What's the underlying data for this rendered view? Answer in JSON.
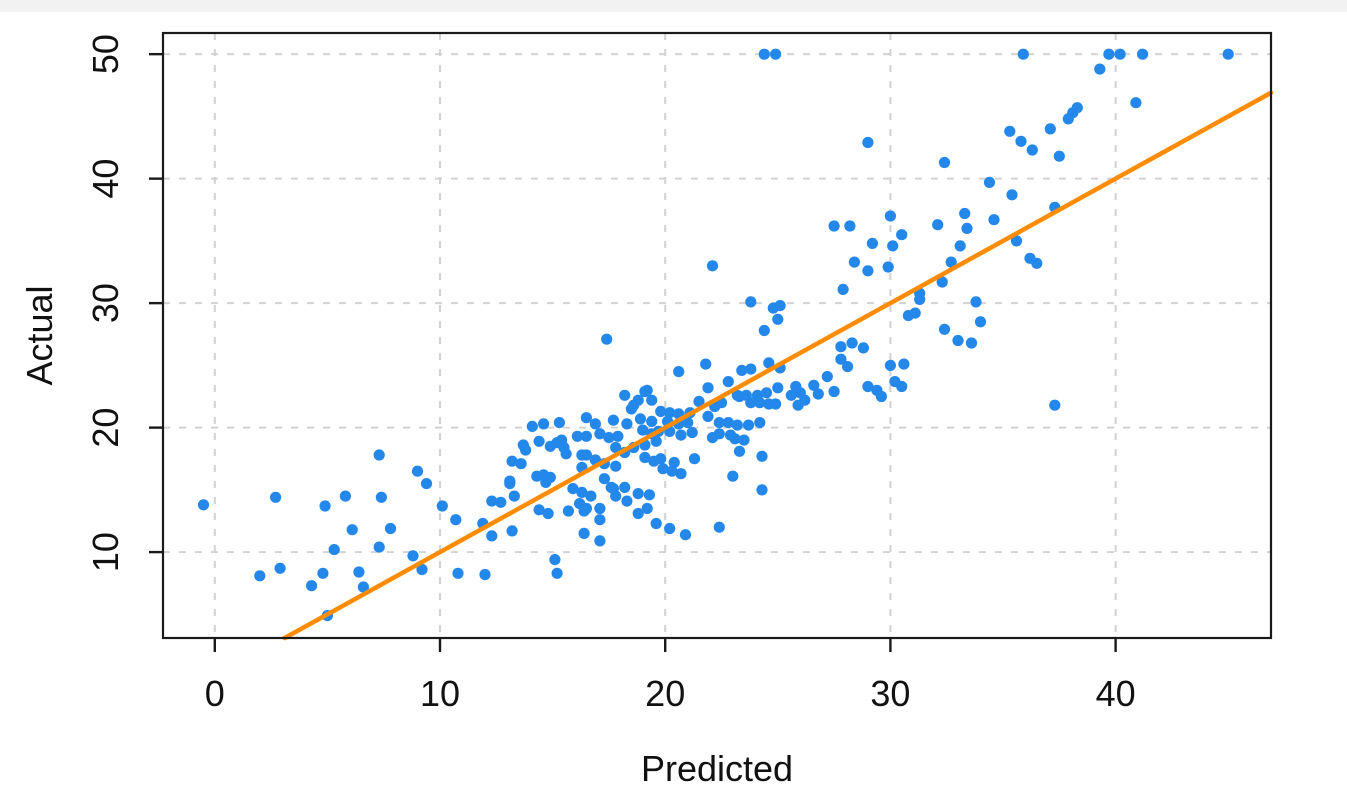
{
  "chart_data": {
    "type": "scatter",
    "title": "",
    "xlabel": "Predicted",
    "ylabel": "Actual",
    "xlim": [
      -2.3,
      46.9
    ],
    "ylim": [
      3.1,
      51.7
    ],
    "x_ticks": [
      0,
      10,
      20,
      30,
      40
    ],
    "y_ticks": [
      10,
      20,
      30,
      40,
      50
    ],
    "grid": true,
    "legend_position": "none",
    "point_color": "#2487EA",
    "grid_color": "#D2D2D2",
    "axis_color": "#1A1A1A",
    "reference_line": {
      "type": "identity",
      "slope": 1,
      "intercept": 0,
      "color": "#FF8C00",
      "width": 4.5
    },
    "points": [
      [
        24.4,
        50
      ],
      [
        24.9,
        50
      ],
      [
        35.9,
        50
      ],
      [
        39.7,
        50
      ],
      [
        40.2,
        50
      ],
      [
        41.2,
        50
      ],
      [
        45,
        50
      ],
      [
        39.3,
        48.8
      ],
      [
        38.1,
        45.3
      ],
      [
        38.3,
        45.7
      ],
      [
        40.9,
        46.1
      ],
      [
        37.9,
        44.8
      ],
      [
        37.1,
        44
      ],
      [
        35.3,
        43.8
      ],
      [
        35.8,
        43
      ],
      [
        36.3,
        42.3
      ],
      [
        37.5,
        41.8
      ],
      [
        32.4,
        41.3
      ],
      [
        29,
        42.9
      ],
      [
        34.4,
        39.7
      ],
      [
        35.4,
        38.7
      ],
      [
        30,
        37
      ],
      [
        33.3,
        37.2
      ],
      [
        37.3,
        37.7
      ],
      [
        33.4,
        36
      ],
      [
        32.1,
        36.3
      ],
      [
        34.6,
        36.7
      ],
      [
        27.5,
        36.2
      ],
      [
        28.2,
        36.2
      ],
      [
        30.5,
        35.5
      ],
      [
        30.1,
        34.6
      ],
      [
        33.1,
        34.6
      ],
      [
        35.6,
        35
      ],
      [
        29.2,
        34.8
      ],
      [
        36.2,
        33.6
      ],
      [
        36.5,
        33.2
      ],
      [
        32.7,
        33.3
      ],
      [
        28.4,
        33.3
      ],
      [
        22.1,
        33
      ],
      [
        29,
        32.6
      ],
      [
        29.9,
        32.9
      ],
      [
        32.3,
        31.7
      ],
      [
        31.3,
        30.8
      ],
      [
        27.9,
        31.1
      ],
      [
        31.3,
        30.3
      ],
      [
        30.8,
        29
      ],
      [
        31.1,
        29.2
      ],
      [
        33.8,
        30.1
      ],
      [
        34,
        28.5
      ],
      [
        32.4,
        27.9
      ],
      [
        33,
        27
      ],
      [
        33.6,
        26.8
      ],
      [
        23.8,
        30.1
      ],
      [
        24.8,
        29.6
      ],
      [
        25.1,
        29.8
      ],
      [
        25,
        28.7
      ],
      [
        24.4,
        27.8
      ],
      [
        17.4,
        27.1
      ],
      [
        30.6,
        25.1
      ],
      [
        27.8,
        26.5
      ],
      [
        28.3,
        26.8
      ],
      [
        28.8,
        26.4
      ],
      [
        30,
        25
      ],
      [
        21.8,
        25.1
      ],
      [
        24.6,
        25.2
      ],
      [
        20.6,
        24.5
      ],
      [
        23.4,
        24.6
      ],
      [
        23.8,
        24.7
      ],
      [
        25.1,
        24.8
      ],
      [
        27.8,
        25.5
      ],
      [
        28.1,
        24.9
      ],
      [
        22.8,
        23.7
      ],
      [
        27.2,
        24.1
      ],
      [
        26.6,
        23.4
      ],
      [
        25.8,
        23.3
      ],
      [
        29,
        23.3
      ],
      [
        29.4,
        23
      ],
      [
        30.2,
        23.7
      ],
      [
        30.5,
        23.3
      ],
      [
        25,
        23.2
      ],
      [
        23.2,
        22.6
      ],
      [
        23.6,
        22.6
      ],
      [
        24.1,
        22.6
      ],
      [
        24.5,
        22.8
      ],
      [
        25.6,
        22.6
      ],
      [
        23.3,
        22.5
      ],
      [
        19.1,
        22.9
      ],
      [
        19.4,
        22.2
      ],
      [
        18.2,
        22.6
      ],
      [
        18.8,
        22.2
      ],
      [
        19.2,
        23
      ],
      [
        21.9,
        23.2
      ],
      [
        26,
        22.8
      ],
      [
        26.8,
        22.7
      ],
      [
        27.5,
        22.9
      ],
      [
        26.2,
        22.2
      ],
      [
        29.6,
        22.5
      ],
      [
        23.8,
        22
      ],
      [
        24.2,
        22
      ],
      [
        24.6,
        21.9
      ],
      [
        24.9,
        21.9
      ],
      [
        21.5,
        22.1
      ],
      [
        22.5,
        22
      ],
      [
        22.2,
        21.7
      ],
      [
        25.9,
        21.8
      ],
      [
        18.5,
        21.5
      ],
      [
        18.6,
        21.8
      ],
      [
        37.3,
        21.8
      ],
      [
        20.2,
        21.2
      ],
      [
        20.6,
        21.1
      ],
      [
        21.1,
        21.2
      ],
      [
        19.8,
        21.3
      ],
      [
        21.9,
        20.9
      ],
      [
        18.9,
        20.7
      ],
      [
        17.7,
        20.6
      ],
      [
        16.5,
        20.8
      ],
      [
        19.4,
        20.5
      ],
      [
        20.1,
        20.5
      ],
      [
        21,
        20.4
      ],
      [
        22.4,
        20.4
      ],
      [
        24.2,
        20.4
      ],
      [
        16.9,
        20.3
      ],
      [
        18.3,
        20.3
      ],
      [
        20.6,
        20.3
      ],
      [
        22.8,
        20.4
      ],
      [
        23.2,
        20.2
      ],
      [
        23.7,
        20.2
      ],
      [
        14.1,
        20.1
      ],
      [
        14.6,
        20.3
      ],
      [
        15.3,
        20.4
      ],
      [
        22.4,
        19.5
      ],
      [
        22.9,
        19.4
      ],
      [
        22.1,
        19.2
      ],
      [
        23.1,
        19.1
      ],
      [
        23.5,
        19
      ],
      [
        16.1,
        19.3
      ],
      [
        16.5,
        19.3
      ],
      [
        17.1,
        19.5
      ],
      [
        17.5,
        19.2
      ],
      [
        17.9,
        19.3
      ],
      [
        15.4,
        19
      ],
      [
        14.4,
        18.9
      ],
      [
        19,
        19.8
      ],
      [
        19.4,
        19.5
      ],
      [
        19.7,
        19.7
      ],
      [
        20.2,
        19.7
      ],
      [
        20.7,
        19.4
      ],
      [
        21.2,
        19.6
      ],
      [
        19.6,
        18.9
      ],
      [
        15.2,
        18.8
      ],
      [
        13.7,
        18.6
      ],
      [
        14.9,
        18.5
      ],
      [
        15.5,
        18.4
      ],
      [
        17.8,
        18.4
      ],
      [
        18.2,
        18
      ],
      [
        18.6,
        18.4
      ],
      [
        19.1,
        18.6
      ],
      [
        13.8,
        18.2
      ],
      [
        16.5,
        17.8
      ],
      [
        16.9,
        17.4
      ],
      [
        17.3,
        17.1
      ],
      [
        19.1,
        17.6
      ],
      [
        19.5,
        17.3
      ],
      [
        13.2,
        17.3
      ],
      [
        13.6,
        17.1
      ],
      [
        15.6,
        17.9
      ],
      [
        16.3,
        17.8
      ],
      [
        19.8,
        17.5
      ],
      [
        20.4,
        17.2
      ],
      [
        21.3,
        17.5
      ],
      [
        23.3,
        18.1
      ],
      [
        24.3,
        17.7
      ],
      [
        7.3,
        17.8
      ],
      [
        17.8,
        16.9
      ],
      [
        19.9,
        16.7
      ],
      [
        20.3,
        16.5
      ],
      [
        16.3,
        16.8
      ],
      [
        20.7,
        16.3
      ],
      [
        14.6,
        16.2
      ],
      [
        9,
        16.5
      ],
      [
        23,
        16.1
      ],
      [
        14.3,
        16.1
      ],
      [
        17.3,
        15.9
      ],
      [
        14.9,
        16
      ],
      [
        15.9,
        15.1
      ],
      [
        17.6,
        15.2
      ],
      [
        18.2,
        15.2
      ],
      [
        13.1,
        15.5
      ],
      [
        9.4,
        15.5
      ],
      [
        14.7,
        15.6
      ],
      [
        13.1,
        15.7
      ],
      [
        17.7,
        15.1
      ],
      [
        24.3,
        15
      ],
      [
        16.3,
        14.8
      ],
      [
        16.7,
        14.5
      ],
      [
        17.8,
        14.5
      ],
      [
        18.8,
        14.7
      ],
      [
        19.3,
        14.6
      ],
      [
        13.3,
        14.5
      ],
      [
        18.3,
        14.1
      ],
      [
        12.3,
        14.1
      ],
      [
        2.7,
        14.4
      ],
      [
        5.8,
        14.5
      ],
      [
        7.4,
        14.4
      ],
      [
        12.7,
        14
      ],
      [
        16.2,
        13.9
      ],
      [
        16.5,
        13.5
      ],
      [
        15.7,
        13.3
      ],
      [
        17.1,
        13.5
      ],
      [
        19.2,
        13.5
      ],
      [
        18.8,
        13.1
      ],
      [
        16.4,
        13.3
      ],
      [
        14.4,
        13.4
      ],
      [
        14.8,
        13.1
      ],
      [
        4.9,
        13.7
      ],
      [
        10.1,
        13.7
      ],
      [
        -0.5,
        13.8
      ],
      [
        17.1,
        12.6
      ],
      [
        10.7,
        12.6
      ],
      [
        11.9,
        12.3
      ],
      [
        22.4,
        12
      ],
      [
        19.6,
        12.3
      ],
      [
        6.1,
        11.8
      ],
      [
        7.8,
        11.9
      ],
      [
        12.3,
        11.3
      ],
      [
        13.2,
        11.7
      ],
      [
        16.4,
        11.5
      ],
      [
        20.9,
        11.4
      ],
      [
        20.2,
        11.9
      ],
      [
        7.3,
        10.4
      ],
      [
        5.3,
        10.2
      ],
      [
        17.1,
        10.9
      ],
      [
        8.8,
        9.7
      ],
      [
        15.1,
        9.4
      ],
      [
        9.2,
        8.6
      ],
      [
        2,
        8.1
      ],
      [
        2.9,
        8.7
      ],
      [
        4.8,
        8.3
      ],
      [
        4.3,
        7.3
      ],
      [
        6.4,
        8.4
      ],
      [
        6.6,
        7.2
      ],
      [
        10.8,
        8.3
      ],
      [
        12,
        8.2
      ],
      [
        15.2,
        8.3
      ],
      [
        5,
        4.9
      ]
    ]
  }
}
